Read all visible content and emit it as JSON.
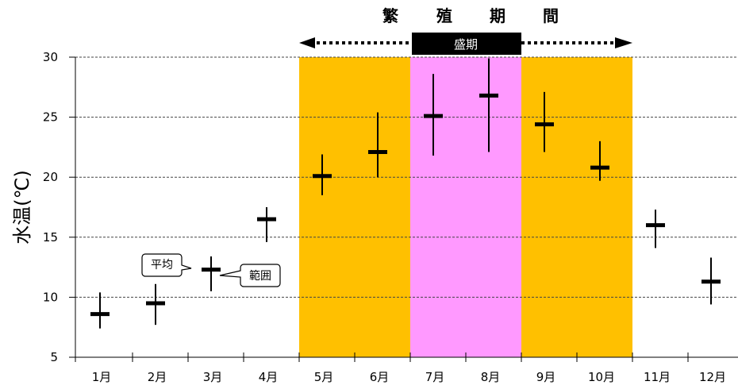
{
  "chart_data": {
    "type": "errorbar",
    "ylabel": "水温(℃)",
    "ylim": [
      5,
      30
    ],
    "yticks": [
      "5",
      "10",
      "15",
      "20",
      "25",
      "30"
    ],
    "grid": "horizontal-dashed",
    "categories": [
      "1月",
      "2月",
      "3月",
      "4月",
      "5月",
      "6月",
      "7月",
      "8月",
      "9月",
      "10月",
      "11月",
      "12月"
    ],
    "mean": [
      8.6,
      9.5,
      12.3,
      16.5,
      20.1,
      22.1,
      25.1,
      26.8,
      24.4,
      20.8,
      16.0,
      11.3
    ],
    "min": [
      7.4,
      7.7,
      10.5,
      14.6,
      18.5,
      20.0,
      21.8,
      22.1,
      22.1,
      19.7,
      14.1,
      9.4
    ],
    "max": [
      10.4,
      11.1,
      13.4,
      17.5,
      21.9,
      25.4,
      28.6,
      29.9,
      27.1,
      23.0,
      17.3,
      13.3
    ],
    "breeding_period": {
      "label": [
        "繁",
        "殖",
        "期",
        "間"
      ],
      "start_month": 5,
      "end_month": 10,
      "color": "#ffc000"
    },
    "peak_period": {
      "label": "盛期",
      "start_month": 7,
      "end_month": 8,
      "color": "#ff99ff"
    },
    "annotations": {
      "mean_label": "平均",
      "range_label": "範囲"
    }
  }
}
